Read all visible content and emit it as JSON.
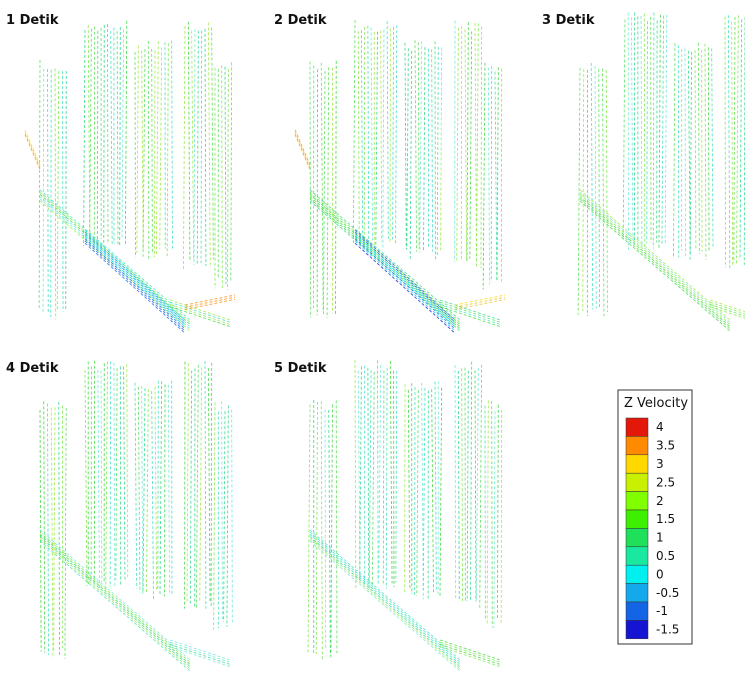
{
  "panels": [
    {
      "label": "1 Detik"
    },
    {
      "label": "2 Detik"
    },
    {
      "label": "3 Detik"
    },
    {
      "label": "4 Detik"
    },
    {
      "label": "5 Detik"
    }
  ],
  "legend": {
    "title": "Z Velocity",
    "levels": [
      {
        "label": 4,
        "color": "#e3170a"
      },
      {
        "label": 3.5,
        "color": "#ff8a00"
      },
      {
        "label": 3,
        "color": "#ffd800"
      },
      {
        "label": 2.5,
        "color": "#c8f000"
      },
      {
        "label": 2,
        "color": "#7fff00"
      },
      {
        "label": 1.5,
        "color": "#3cf000"
      },
      {
        "label": 1,
        "color": "#1ee05a"
      },
      {
        "label": 0.5,
        "color": "#19e8a0"
      },
      {
        "label": 0,
        "color": "#00f0f0"
      },
      {
        "label": -0.5,
        "color": "#14a8ec"
      },
      {
        "label": -1,
        "color": "#1464e6"
      },
      {
        "label": -1.5,
        "color": "#1414d2"
      }
    ]
  }
}
